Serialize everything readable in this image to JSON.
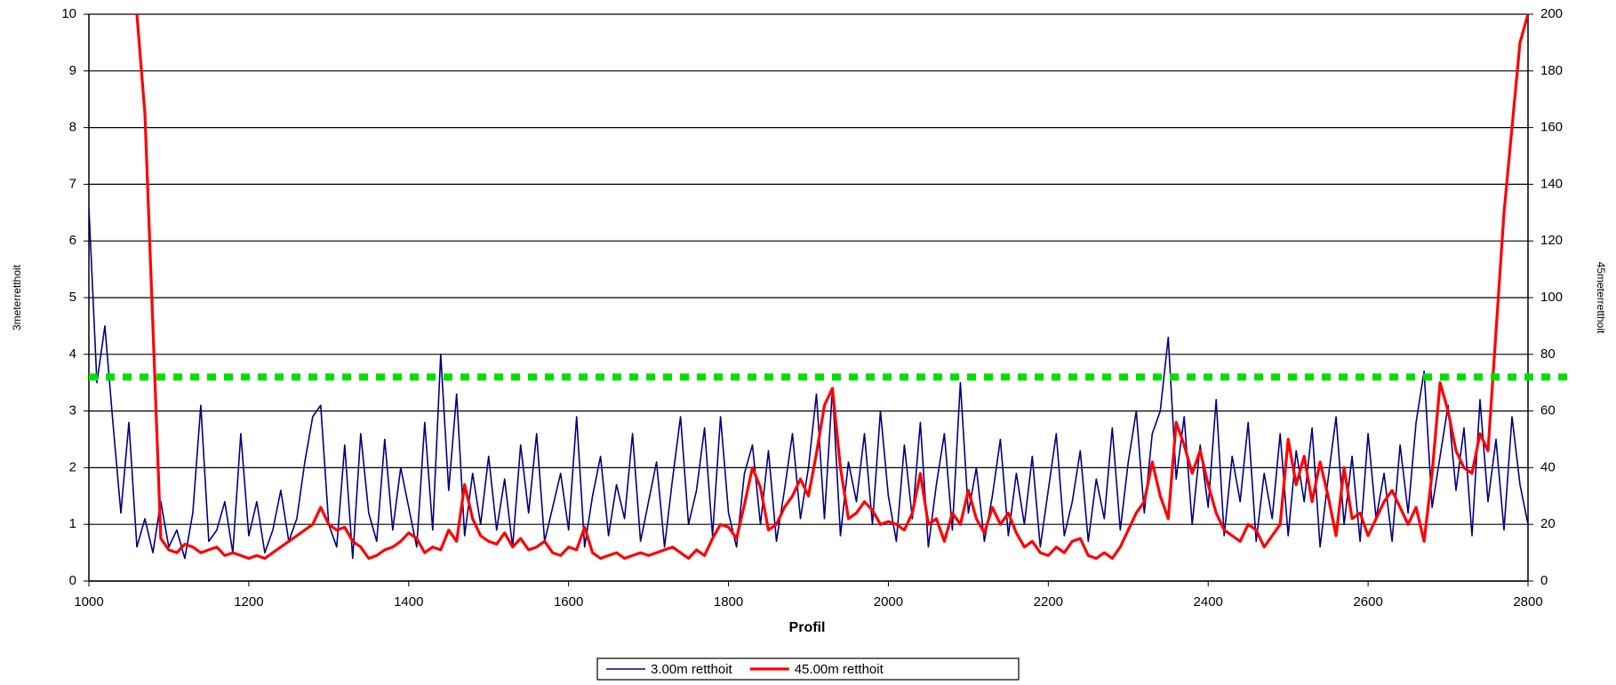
{
  "chart_data": {
    "type": "line",
    "x_label": "Profil",
    "y_label": "3meterretthoit",
    "y2_label": "45meterretthoit",
    "x": [
      1000,
      1010,
      1020,
      1030,
      1040,
      1050,
      1060,
      1070,
      1080,
      1090,
      1100,
      1110,
      1120,
      1130,
      1140,
      1150,
      1160,
      1170,
      1180,
      1190,
      1200,
      1210,
      1220,
      1230,
      1240,
      1250,
      1260,
      1270,
      1280,
      1290,
      1300,
      1310,
      1320,
      1330,
      1340,
      1350,
      1360,
      1370,
      1380,
      1390,
      1400,
      1410,
      1420,
      1430,
      1440,
      1450,
      1460,
      1470,
      1480,
      1490,
      1500,
      1510,
      1520,
      1530,
      1540,
      1550,
      1560,
      1570,
      1580,
      1590,
      1600,
      1610,
      1620,
      1630,
      1640,
      1650,
      1660,
      1670,
      1680,
      1690,
      1700,
      1710,
      1720,
      1730,
      1740,
      1750,
      1760,
      1770,
      1780,
      1790,
      1800,
      1810,
      1820,
      1830,
      1840,
      1850,
      1860,
      1870,
      1880,
      1890,
      1900,
      1910,
      1920,
      1930,
      1940,
      1950,
      1960,
      1970,
      1980,
      1990,
      2000,
      2010,
      2020,
      2030,
      2040,
      2050,
      2060,
      2070,
      2080,
      2090,
      2100,
      2110,
      2120,
      2130,
      2140,
      2150,
      2160,
      2170,
      2180,
      2190,
      2200,
      2210,
      2220,
      2230,
      2240,
      2250,
      2260,
      2270,
      2280,
      2290,
      2300,
      2310,
      2320,
      2330,
      2340,
      2350,
      2360,
      2370,
      2380,
      2390,
      2400,
      2410,
      2420,
      2430,
      2440,
      2450,
      2460,
      2470,
      2480,
      2490,
      2500,
      2510,
      2520,
      2530,
      2540,
      2550,
      2560,
      2570,
      2580,
      2590,
      2600,
      2610,
      2620,
      2630,
      2640,
      2650,
      2660,
      2670,
      2680,
      2690,
      2700,
      2710,
      2720,
      2730,
      2740,
      2750,
      2760,
      2770,
      2780,
      2790,
      2800
    ],
    "series": [
      {
        "name": "3.00m retthoit",
        "color": "#000080",
        "values": [
          6.6,
          3.5,
          4.5,
          2.8,
          1.2,
          2.8,
          0.6,
          1.1,
          0.5,
          1.4,
          0.6,
          0.9,
          0.4,
          1.2,
          3.1,
          0.7,
          0.9,
          1.4,
          0.5,
          2.6,
          0.8,
          1.4,
          0.5,
          0.9,
          1.6,
          0.7,
          1.1,
          2.1,
          2.9,
          3.1,
          1.0,
          0.6,
          2.4,
          0.4,
          2.6,
          1.2,
          0.7,
          2.5,
          0.9,
          2.0,
          1.3,
          0.6,
          2.8,
          0.9,
          4.0,
          1.6,
          3.3,
          0.8,
          1.9,
          1.0,
          2.2,
          0.9,
          1.8,
          0.6,
          2.4,
          1.2,
          2.6,
          0.7,
          1.3,
          1.9,
          0.9,
          2.9,
          0.6,
          1.5,
          2.2,
          0.8,
          1.7,
          1.1,
          2.6,
          0.7,
          1.4,
          2.1,
          0.6,
          1.8,
          2.9,
          1.0,
          1.6,
          2.7,
          0.8,
          2.9,
          1.2,
          0.6,
          1.9,
          2.4,
          1.0,
          2.3,
          0.7,
          1.6,
          2.6,
          1.1,
          2.0,
          3.3,
          1.1,
          3.4,
          0.8,
          2.1,
          1.4,
          2.6,
          1.0,
          3.0,
          1.5,
          0.7,
          2.4,
          1.1,
          2.8,
          0.6,
          1.7,
          2.6,
          0.9,
          3.5,
          1.2,
          2.0,
          0.7,
          1.5,
          2.5,
          0.8,
          1.9,
          1.0,
          2.2,
          0.6,
          1.6,
          2.6,
          0.8,
          1.4,
          2.3,
          0.7,
          1.8,
          1.1,
          2.7,
          0.9,
          2.1,
          3.0,
          1.2,
          2.6,
          3.0,
          4.3,
          1.8,
          2.9,
          1.0,
          2.4,
          1.3,
          3.2,
          0.8,
          2.2,
          1.4,
          2.8,
          0.7,
          1.9,
          1.1,
          2.6,
          0.8,
          2.3,
          1.4,
          2.7,
          0.6,
          1.8,
          2.9,
          1.0,
          2.2,
          0.7,
          2.6,
          1.1,
          1.9,
          0.7,
          2.4,
          1.2,
          2.8,
          3.7,
          1.3,
          2.2,
          3.1,
          1.6,
          2.7,
          0.8,
          3.2,
          1.4,
          2.5,
          0.9,
          2.9,
          1.7,
          1.0
        ]
      },
      {
        "name": "45.00m retthoit",
        "color": "#ff0000",
        "axis": "y2",
        "values": [
          null,
          null,
          null,
          null,
          null,
          null,
          200,
          165,
          90,
          15,
          11,
          10,
          13,
          12,
          10,
          11,
          12,
          9,
          10,
          9,
          8,
          9,
          8,
          10,
          12,
          14,
          16,
          18,
          20,
          26,
          20,
          18,
          19,
          14,
          12,
          8,
          9,
          11,
          12,
          14,
          17,
          15,
          10,
          12,
          11,
          18,
          14,
          34,
          22,
          16,
          14,
          13,
          17,
          12,
          15,
          11,
          12,
          14,
          10,
          9,
          12,
          11,
          19,
          10,
          8,
          9,
          10,
          8,
          9,
          10,
          9,
          10,
          11,
          12,
          10,
          8,
          11,
          9,
          15,
          20,
          19,
          15,
          27,
          40,
          33,
          18,
          20,
          26,
          30,
          36,
          30,
          45,
          62,
          68,
          40,
          22,
          24,
          28,
          25,
          20,
          21,
          20,
          18,
          24,
          38,
          20,
          22,
          14,
          24,
          20,
          32,
          22,
          17,
          26,
          20,
          24,
          17,
          12,
          14,
          10,
          9,
          12,
          10,
          14,
          15,
          9,
          8,
          10,
          8,
          12,
          18,
          24,
          28,
          42,
          30,
          22,
          56,
          48,
          38,
          46,
          34,
          24,
          18,
          16,
          14,
          20,
          18,
          12,
          16,
          20,
          50,
          34,
          44,
          28,
          42,
          30,
          16,
          40,
          22,
          24,
          16,
          22,
          28,
          32,
          26,
          20,
          26,
          14,
          38,
          70,
          60,
          46,
          40,
          38,
          52,
          46,
          88,
          130,
          160,
          190,
          200
        ]
      }
    ],
    "reference_lines": [
      {
        "value": 3.6,
        "color": "#00e000"
      }
    ],
    "xlim": [
      1000,
      2800
    ],
    "xticks": [
      1000,
      1200,
      1400,
      1600,
      1800,
      2000,
      2200,
      2400,
      2600,
      2800
    ],
    "ylim": [
      0,
      10
    ],
    "yticks": [
      0,
      1,
      2,
      3,
      4,
      5,
      6,
      7,
      8,
      9,
      10
    ],
    "y2lim": [
      0,
      200
    ],
    "y2ticks": [
      0,
      20,
      40,
      60,
      80,
      100,
      120,
      140,
      160,
      180,
      200
    ],
    "grid": true
  }
}
